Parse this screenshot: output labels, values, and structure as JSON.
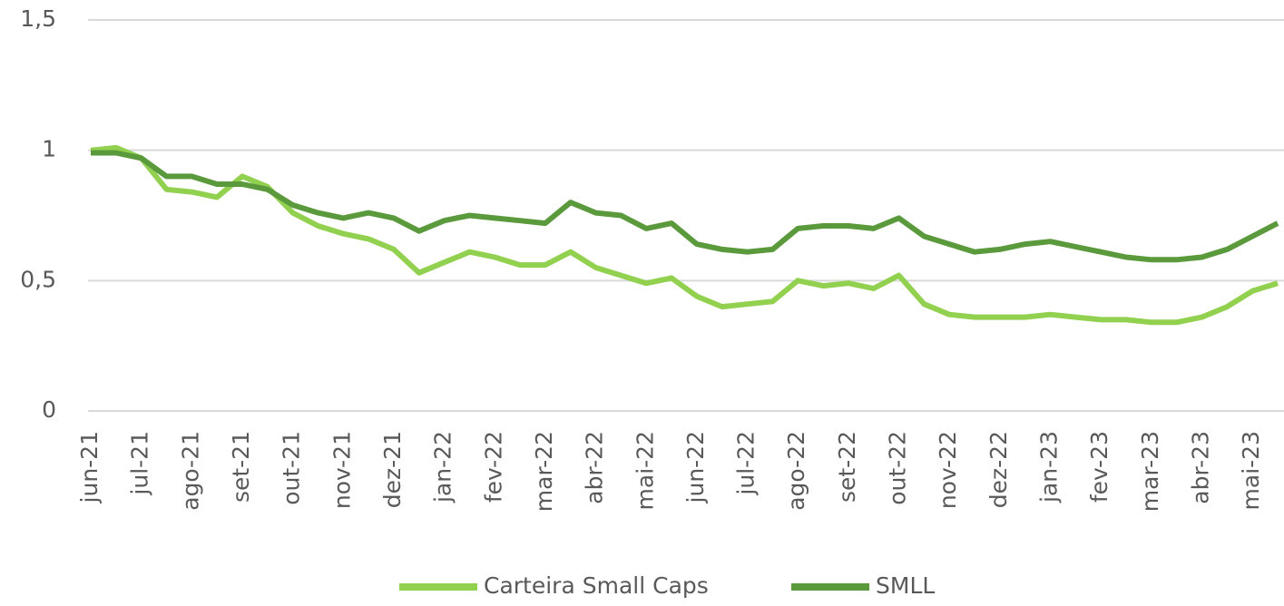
{
  "chart_data": {
    "type": "line",
    "categories": [
      "jun-21",
      null,
      "jul-21",
      null,
      "ago-21",
      null,
      "set-21",
      null,
      "out-21",
      null,
      "nov-21",
      null,
      "dez-21",
      null,
      "jan-22",
      null,
      "fev-22",
      null,
      "mar-22",
      null,
      "abr-22",
      null,
      "mai-22",
      null,
      "jun-22",
      null,
      "jul-22",
      null,
      "ago-22",
      null,
      "set-22",
      null,
      "out-22",
      null,
      "nov-22",
      null,
      "dez-22",
      null,
      "jan-23",
      null,
      "fev-23",
      null,
      "mar-23",
      null,
      "abr-23",
      null,
      "mai-23",
      null
    ],
    "series": [
      {
        "name": "Carteira Small Caps",
        "color": "#92d050",
        "values": [
          1.0,
          1.01,
          0.97,
          0.85,
          0.84,
          0.82,
          0.9,
          0.86,
          0.76,
          0.71,
          0.68,
          0.66,
          0.62,
          0.53,
          0.57,
          0.61,
          0.59,
          0.56,
          0.56,
          0.61,
          0.55,
          0.52,
          0.49,
          0.51,
          0.44,
          0.4,
          0.41,
          0.42,
          0.5,
          0.48,
          0.49,
          0.47,
          0.52,
          0.41,
          0.37,
          0.36,
          0.36,
          0.36,
          0.37,
          0.36,
          0.35,
          0.35,
          0.34,
          0.34,
          0.36,
          0.4,
          0.46,
          0.49
        ]
      },
      {
        "name": "SMLL",
        "color": "#5a9a3c",
        "values": [
          0.99,
          0.99,
          0.97,
          0.9,
          0.9,
          0.87,
          0.87,
          0.85,
          0.79,
          0.76,
          0.74,
          0.76,
          0.74,
          0.69,
          0.73,
          0.75,
          0.74,
          0.73,
          0.72,
          0.8,
          0.76,
          0.75,
          0.7,
          0.72,
          0.64,
          0.62,
          0.61,
          0.62,
          0.7,
          0.71,
          0.71,
          0.7,
          0.74,
          0.67,
          0.64,
          0.61,
          0.62,
          0.64,
          0.65,
          0.63,
          0.61,
          0.59,
          0.58,
          0.58,
          0.59,
          0.62,
          0.67,
          0.72
        ]
      }
    ],
    "ylim": [
      0,
      1.5
    ],
    "yticks": [
      0,
      {
        "value": 0.5,
        "label": "0,5"
      },
      1,
      {
        "value": 1.5,
        "label": "1,5"
      }
    ],
    "grid": true,
    "legend": "bottom"
  }
}
